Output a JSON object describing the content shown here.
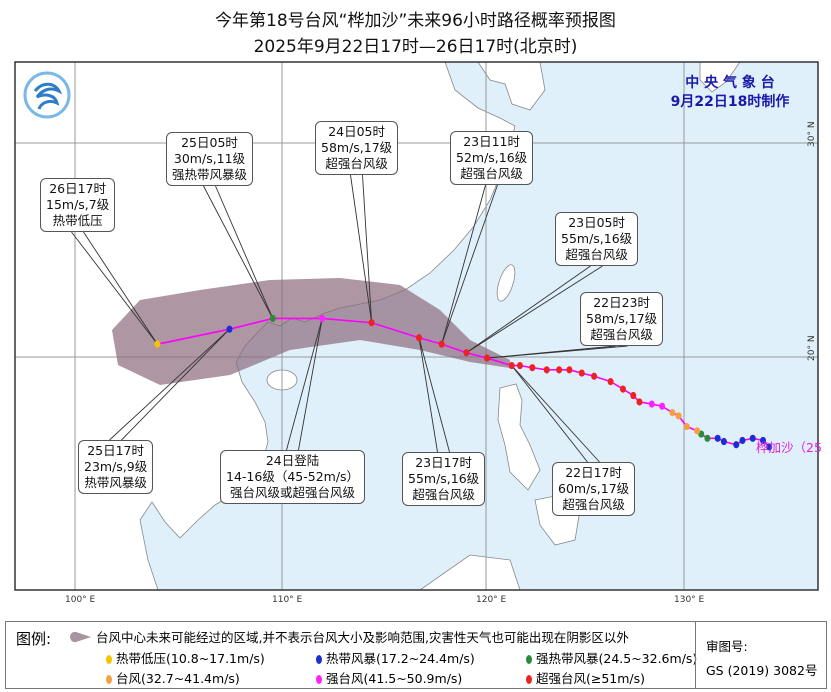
{
  "title": "今年第18号台风“桦加沙”未来96小时路径概率预报图",
  "subtitle": "2025年9月22日17时—26日17时(北京时)",
  "agency": {
    "name": "中 央 气 象 台",
    "issued": "9月22日18时制作"
  },
  "storm_name": "桦加沙（25",
  "axes": {
    "lon_ticks": [
      "100° E",
      "110° E",
      "120° E",
      "130° E"
    ],
    "lat_ticks": [
      "20° N",
      "30° N"
    ]
  },
  "colors": {
    "sea": "#dff0fb",
    "land": "#ffffff",
    "cone": "#9c7f8c",
    "track": "#ff00ff",
    "td": "#f5c400",
    "ts": "#1a2fd0",
    "sts": "#2e8b3a",
    "ty": "#f7a040",
    "sty": "#ff22ff",
    "superty": "#ee2222"
  },
  "forecast_points": [
    {
      "lon": 121.2,
      "lat": 19.6,
      "cat": "superty"
    },
    {
      "lon": 120.0,
      "lat": 19.95,
      "cat": "superty"
    },
    {
      "lon": 119.0,
      "lat": 20.2,
      "cat": "superty"
    },
    {
      "lon": 117.8,
      "lat": 20.6,
      "cat": "superty"
    },
    {
      "lon": 116.7,
      "lat": 20.9,
      "cat": "superty"
    },
    {
      "lon": 114.4,
      "lat": 21.6,
      "cat": "superty"
    },
    {
      "lon": 112.0,
      "lat": 21.8,
      "cat": "sty"
    },
    {
      "lon": 109.6,
      "lat": 21.8,
      "cat": "sts"
    },
    {
      "lon": 107.5,
      "lat": 21.3,
      "cat": "ts"
    },
    {
      "lon": 104.0,
      "lat": 20.6,
      "cat": "td"
    }
  ],
  "past_points": [
    {
      "lon": 121.6,
      "lat": 19.6,
      "cat": "superty"
    },
    {
      "lon": 122.2,
      "lat": 19.5,
      "cat": "superty"
    },
    {
      "lon": 122.9,
      "lat": 19.4,
      "cat": "superty"
    },
    {
      "lon": 123.5,
      "lat": 19.4,
      "cat": "superty"
    },
    {
      "lon": 124.0,
      "lat": 19.4,
      "cat": "superty"
    },
    {
      "lon": 124.6,
      "lat": 19.25,
      "cat": "superty"
    },
    {
      "lon": 125.2,
      "lat": 19.1,
      "cat": "superty"
    },
    {
      "lon": 126.0,
      "lat": 18.85,
      "cat": "superty"
    },
    {
      "lon": 126.6,
      "lat": 18.5,
      "cat": "superty"
    },
    {
      "lon": 127.1,
      "lat": 18.2,
      "cat": "superty"
    },
    {
      "lon": 127.4,
      "lat": 17.9,
      "cat": "superty"
    },
    {
      "lon": 128.0,
      "lat": 17.8,
      "cat": "sty"
    },
    {
      "lon": 128.5,
      "lat": 17.7,
      "cat": "sty"
    },
    {
      "lon": 129.0,
      "lat": 17.4,
      "cat": "ty"
    },
    {
      "lon": 129.3,
      "lat": 17.25,
      "cat": "ty"
    },
    {
      "lon": 129.7,
      "lat": 16.75,
      "cat": "ty"
    },
    {
      "lon": 130.2,
      "lat": 16.55,
      "cat": "ty"
    },
    {
      "lon": 130.4,
      "lat": 16.4,
      "cat": "sts"
    },
    {
      "lon": 130.7,
      "lat": 16.2,
      "cat": "sts"
    },
    {
      "lon": 131.2,
      "lat": 16.2,
      "cat": "ts"
    },
    {
      "lon": 131.5,
      "lat": 16.05,
      "cat": "ts"
    },
    {
      "lon": 132.1,
      "lat": 15.9,
      "cat": "ts"
    },
    {
      "lon": 132.4,
      "lat": 16.1,
      "cat": "ts"
    },
    {
      "lon": 132.9,
      "lat": 16.2,
      "cat": "ts"
    },
    {
      "lon": 133.4,
      "lat": 16.1,
      "cat": "ts"
    },
    {
      "lon": 133.7,
      "lat": 15.8,
      "cat": "ts"
    }
  ],
  "labels": [
    {
      "lines": [
        "26日17时",
        "15m/s,7级",
        "热带低压"
      ]
    },
    {
      "lines": [
        "25日05时",
        "30m/s,11级",
        "强热带风暴级"
      ]
    },
    {
      "lines": [
        "24日05时",
        "58m/s,17级",
        "超强台风级"
      ]
    },
    {
      "lines": [
        "23日11时",
        "52m/s,16级",
        "超强台风级"
      ]
    },
    {
      "lines": [
        "23日05时",
        "55m/s,16级",
        "超强台风级"
      ]
    },
    {
      "lines": [
        "22日23时",
        "58m/s,17级",
        "超强台风级"
      ]
    },
    {
      "lines": [
        "25日17时",
        "23m/s,9级",
        "热带风暴级"
      ]
    },
    {
      "lines": [
        "24日登陆",
        "14-16级（45-52m/s）",
        "强台风级或超强台风级"
      ]
    },
    {
      "lines": [
        "23日17时",
        "55m/s,16级",
        "超强台风级"
      ]
    },
    {
      "lines": [
        "22日17时",
        "60m/s,17级",
        "超强台风级"
      ]
    }
  ],
  "legend": {
    "title": "图例:",
    "cone": "台风中心未来可能经过的区域,并不表示台风大小及影响范围,灾害性天气也可能出现在阴影区以外",
    "items": [
      {
        "label": "热带低压(10.8~17.1m/s)",
        "color": "#f5c400"
      },
      {
        "label": "热带风暴(17.2~24.4m/s)",
        "color": "#1a2fd0"
      },
      {
        "label": "强热带风暴(24.5~32.6m/s)",
        "color": "#2e8b3a"
      },
      {
        "label": "台风(32.7~41.4m/s)",
        "color": "#f7a040"
      },
      {
        "label": "强台风(41.5~50.9m/s)",
        "color": "#ff22ff"
      },
      {
        "label": "超强台风(≥51m/s)",
        "color": "#ee2222"
      }
    ],
    "review_label": "审图号:",
    "review_no": "GS (2019) 3082号"
  }
}
